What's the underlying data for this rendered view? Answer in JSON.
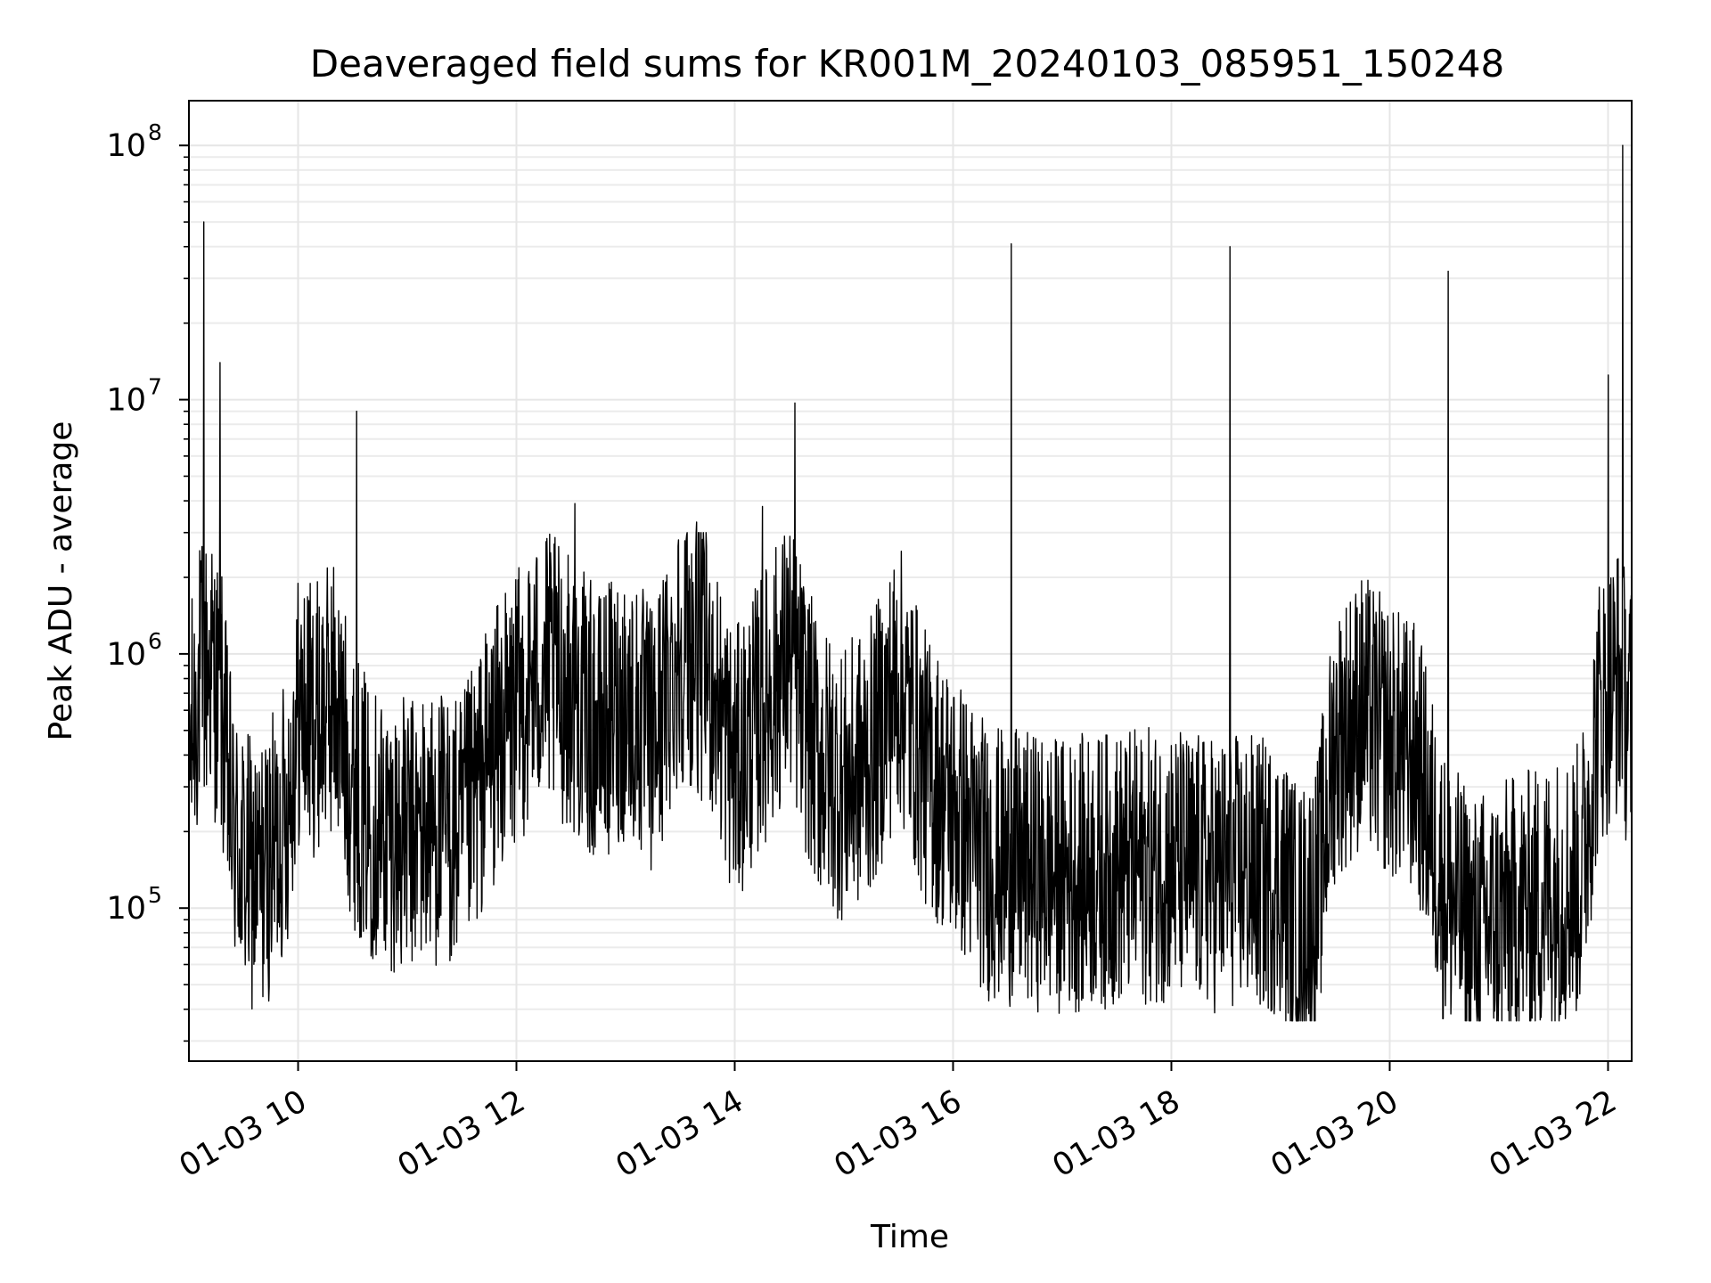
{
  "chart_data": {
    "type": "line",
    "title": "Deaveraged field sums for KR001M_20240103_085951_150248",
    "xlabel": "Time",
    "ylabel": "Peak ADU - average",
    "yscale": "log",
    "grid": true,
    "xlim": [
      "01-03 09:00",
      "01-03 22:13"
    ],
    "ylim": [
      25000,
      150000000
    ],
    "xticks": [
      {
        "value": "01-03 10:00",
        "label": "01-03 10"
      },
      {
        "value": "01-03 12:00",
        "label": "01-03 12"
      },
      {
        "value": "01-03 14:00",
        "label": "01-03 14"
      },
      {
        "value": "01-03 16:00",
        "label": "01-03 16"
      },
      {
        "value": "01-03 18:00",
        "label": "01-03 18"
      },
      {
        "value": "01-03 20:00",
        "label": "01-03 20"
      },
      {
        "value": "01-03 22:00",
        "label": "01-03 22"
      }
    ],
    "yticks": [
      {
        "value": 100000,
        "base": "10",
        "exp": "5"
      },
      {
        "value": 1000000,
        "base": "10",
        "exp": "6"
      },
      {
        "value": 10000000,
        "base": "10",
        "exp": "7"
      },
      {
        "value": 100000000,
        "base": "10",
        "exp": "8"
      }
    ],
    "series": [
      {
        "color": "#000000",
        "x": [
          "01-03 09:00",
          "01-03 09:06",
          "01-03 09:12",
          "01-03 09:18",
          "01-03 09:24",
          "01-03 09:30",
          "01-03 09:36",
          "01-03 09:42",
          "01-03 09:48",
          "01-03 09:54",
          "01-03 10:00",
          "01-03 10:10",
          "01-03 10:20",
          "01-03 10:30",
          "01-03 10:40",
          "01-03 10:50",
          "01-03 11:00",
          "01-03 11:15",
          "01-03 11:30",
          "01-03 11:45",
          "01-03 12:00",
          "01-03 12:15",
          "01-03 12:30",
          "01-03 12:45",
          "01-03 13:00",
          "01-03 13:15",
          "01-03 13:30",
          "01-03 13:45",
          "01-03 14:00",
          "01-03 14:15",
          "01-03 14:30",
          "01-03 14:45",
          "01-03 15:00",
          "01-03 15:15",
          "01-03 15:30",
          "01-03 15:45",
          "01-03 16:00",
          "01-03 16:20",
          "01-03 16:40",
          "01-03 17:00",
          "01-03 17:20",
          "01-03 17:40",
          "01-03 18:00",
          "01-03 18:20",
          "01-03 18:40",
          "01-03 19:00",
          "01-03 19:10",
          "01-03 19:20",
          "01-03 19:30",
          "01-03 19:45",
          "01-03 20:00",
          "01-03 20:15",
          "01-03 20:30",
          "01-03 20:45",
          "01-03 21:00",
          "01-03 21:15",
          "01-03 21:30",
          "01-03 21:45",
          "01-03 21:55",
          "01-03 22:05",
          "01-03 22:13"
        ],
        "y": [
          400000,
          800000,
          900000,
          600000,
          200000,
          150000,
          130000,
          140000,
          180000,
          250000,
          600000,
          550000,
          700000,
          300000,
          220000,
          200000,
          190000,
          210000,
          190000,
          400000,
          600000,
          900000,
          700000,
          500000,
          650000,
          450000,
          1100000,
          900000,
          350000,
          600000,
          1000000,
          400000,
          300000,
          400000,
          800000,
          350000,
          250000,
          150000,
          140000,
          135000,
          140000,
          145000,
          150000,
          135000,
          140000,
          130000,
          85000,
          110000,
          450000,
          600000,
          450000,
          380000,
          120000,
          80000,
          90000,
          100000,
          115000,
          130000,
          600000,
          800000,
          550000
        ]
      }
    ],
    "spikes": [
      {
        "x": "01-03 09:08",
        "y": 50000000
      },
      {
        "x": "01-03 09:17",
        "y": 14000000
      },
      {
        "x": "01-03 10:32",
        "y": 9000000
      },
      {
        "x": "01-03 12:32",
        "y": 3900000
      },
      {
        "x": "01-03 13:39",
        "y": 3300000
      },
      {
        "x": "01-03 14:15",
        "y": 3800000
      },
      {
        "x": "01-03 14:33",
        "y": 9700000
      },
      {
        "x": "01-03 16:32",
        "y": 41000000
      },
      {
        "x": "01-03 18:32",
        "y": 40000000
      },
      {
        "x": "01-03 20:32",
        "y": 32000000
      },
      {
        "x": "01-03 22:00",
        "y": 12500000
      },
      {
        "x": "01-03 22:08",
        "y": 100000000
      }
    ]
  }
}
